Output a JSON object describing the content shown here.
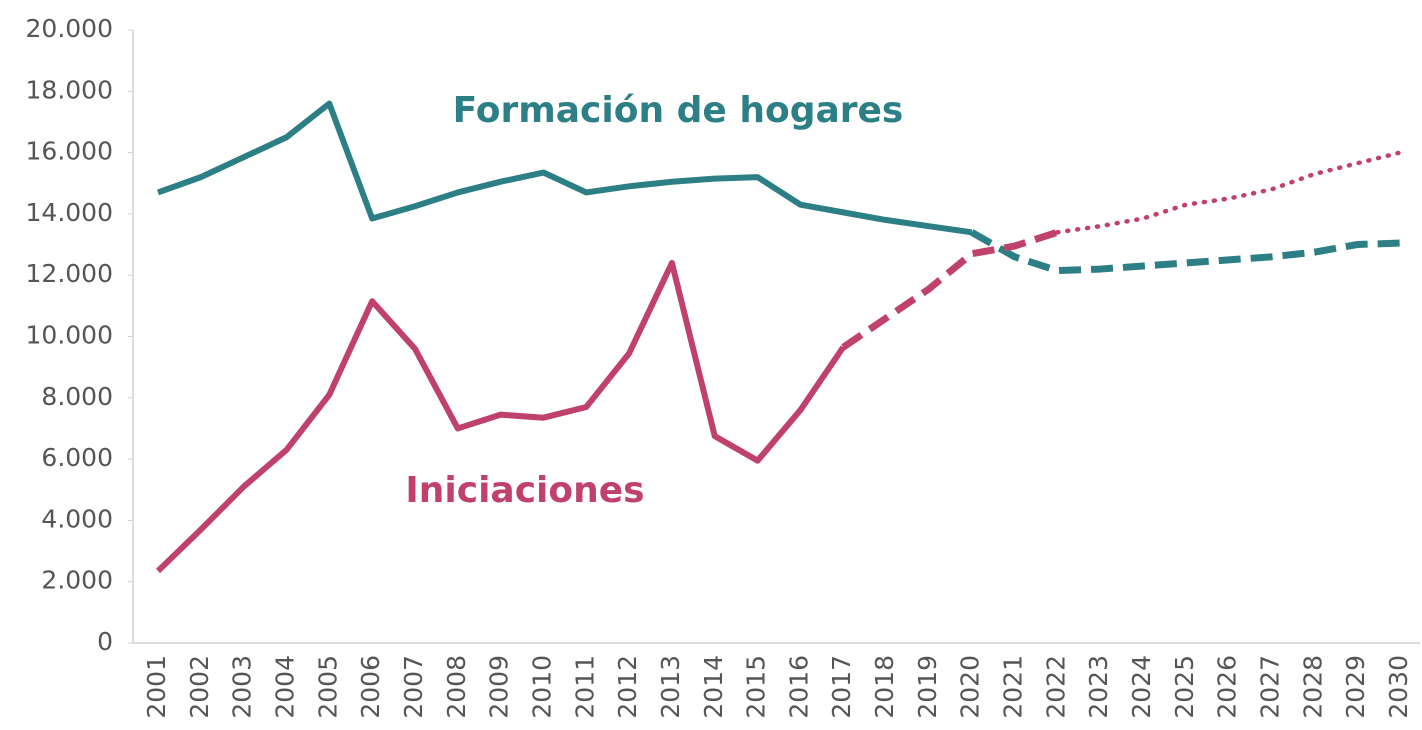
{
  "chart_data": {
    "type": "line",
    "categories": [
      "2001",
      "2002",
      "2003",
      "2004",
      "2005",
      "2006",
      "2007",
      "2008",
      "2009",
      "2010",
      "2011",
      "2012",
      "2013",
      "2014",
      "2015",
      "2016",
      "2017",
      "2018",
      "2019",
      "2020",
      "2021",
      "2022",
      "2023",
      "2024",
      "2025",
      "2026",
      "2027",
      "2028",
      "2029",
      "2030"
    ],
    "series": [
      {
        "name": "Formación de hogares",
        "color": "#2d7f86",
        "values": [
          14700,
          15200,
          15850,
          16500,
          17600,
          13850,
          14250,
          14700,
          15050,
          15350,
          14700,
          14900,
          15050,
          15150,
          15200,
          14300,
          14050,
          13800,
          13600,
          13400,
          12600,
          12150,
          12200,
          12300,
          12400,
          12500,
          12600,
          12750,
          13000,
          13050
        ],
        "line_styles": [
          "solid",
          "solid",
          "solid",
          "solid",
          "solid",
          "solid",
          "solid",
          "solid",
          "solid",
          "solid",
          "solid",
          "solid",
          "solid",
          "solid",
          "solid",
          "solid",
          "solid",
          "solid",
          "solid",
          "solid",
          "dashed",
          "dashed",
          "dashed",
          "dashed",
          "dashed",
          "dashed",
          "dashed",
          "dashed",
          "dashed",
          "dashed"
        ]
      },
      {
        "name": "Iniciaciones",
        "color": "#c0416c",
        "values": [
          2350,
          3700,
          5100,
          6300,
          8100,
          11150,
          9600,
          7000,
          7450,
          7350,
          7700,
          9450,
          12400,
          6750,
          5950,
          7600,
          9650,
          10600,
          11550,
          12700,
          12950,
          13400,
          13600,
          13850,
          14300,
          14500,
          14800,
          15300,
          15650,
          16000
        ],
        "line_styles": [
          "solid",
          "solid",
          "solid",
          "solid",
          "solid",
          "solid",
          "solid",
          "solid",
          "solid",
          "solid",
          "solid",
          "solid",
          "solid",
          "solid",
          "solid",
          "solid",
          "solid",
          "dashed",
          "dashed",
          "dashed",
          "dashed",
          "dashed",
          "dotted",
          "dotted",
          "dotted",
          "dotted",
          "dotted",
          "dotted",
          "dotted",
          "dotted"
        ]
      }
    ],
    "ylim": [
      0,
      20000
    ],
    "yticks": [
      0,
      {
        "value": 2000,
        "label": "2.000"
      },
      {
        "value": 4000,
        "label": "4.000"
      },
      {
        "value": 6000,
        "label": "6.000"
      },
      {
        "value": 8000,
        "label": "8.000"
      },
      {
        "value": 10000,
        "label": "10.000"
      },
      {
        "value": 12000,
        "label": "12.000"
      },
      {
        "value": 14000,
        "label": "14.000"
      },
      {
        "value": 16000,
        "label": "16.000"
      },
      {
        "value": 18000,
        "label": "18.000"
      },
      {
        "value": 20000,
        "label": "20.000"
      }
    ],
    "grid": false
  }
}
